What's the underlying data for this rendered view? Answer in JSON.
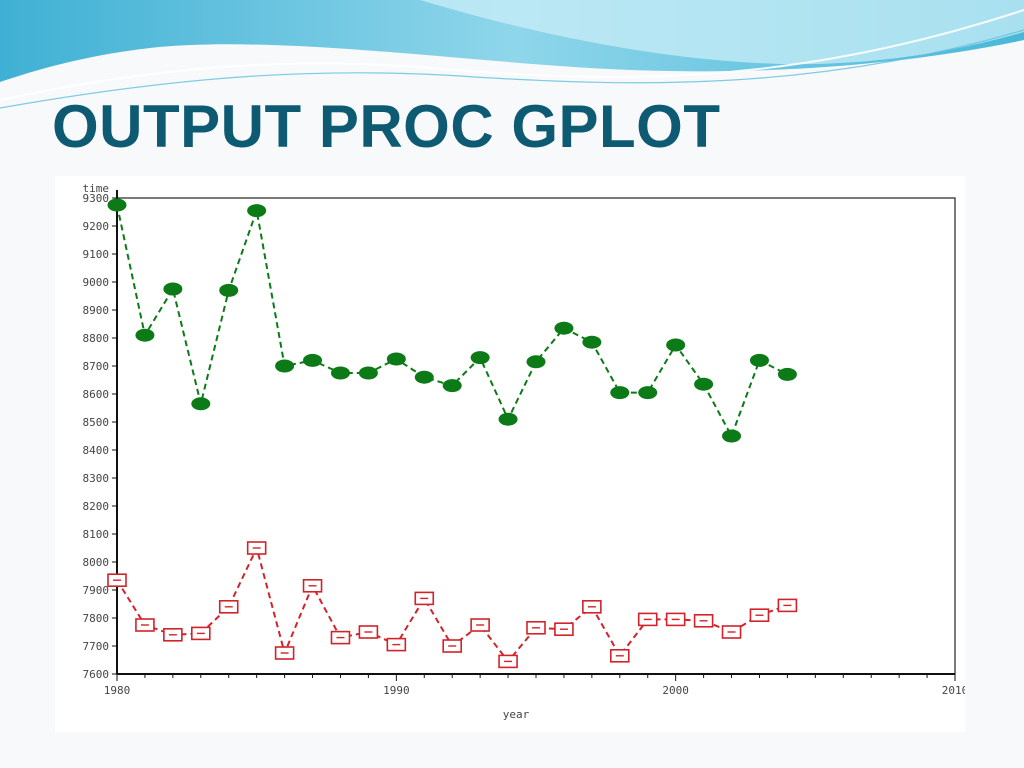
{
  "slide": {
    "title": "OUTPUT PROC GPLOT"
  },
  "colors": {
    "title": "#0e5a73",
    "series_upper": "#0b7a17",
    "series_lower": "#d2232a",
    "background": "#f7f9fb",
    "wave_top": "#48b8d8"
  },
  "chart_data": {
    "type": "line",
    "title": "",
    "xlabel": "year",
    "ylabel": "time",
    "xlim": [
      1980,
      2010
    ],
    "ylim": [
      7600,
      9300
    ],
    "x_ticks": [
      1980,
      1990,
      2000,
      2010
    ],
    "x_tick_labels": [
      "1980",
      "1990",
      "2000",
      "2010"
    ],
    "y_ticks": [
      7600,
      7700,
      7800,
      7900,
      8000,
      8100,
      8200,
      8300,
      8400,
      8500,
      8600,
      8700,
      8800,
      8900,
      9000,
      9100,
      9200,
      9300
    ],
    "y_tick_labels": [
      "7600",
      "7700",
      "7800",
      "7900",
      "8000",
      "8100",
      "8200",
      "8300",
      "8400",
      "8500",
      "8600",
      "8700",
      "8800",
      "8900",
      "9000",
      "9100",
      "9200",
      "9300"
    ],
    "grid": false,
    "line_style": "dashed",
    "series": [
      {
        "marker": "filled-dot",
        "color": "#0b7a17",
        "x": [
          1980,
          1981,
          1982,
          1983,
          1984,
          1985,
          1986,
          1987,
          1988,
          1989,
          1990,
          1991,
          1992,
          1993,
          1994,
          1995,
          1996,
          1997,
          1998,
          1999,
          2000,
          2001,
          2002,
          2003,
          2004
        ],
        "values": [
          9275,
          8810,
          8975,
          8565,
          8970,
          9255,
          8700,
          8720,
          8675,
          8675,
          8725,
          8660,
          8630,
          8730,
          8510,
          8715,
          8835,
          8785,
          8605,
          8605,
          8775,
          8635,
          8450,
          8720,
          8670
        ]
      },
      {
        "marker": "open-square",
        "color": "#d2232a",
        "x": [
          1980,
          1981,
          1982,
          1983,
          1984,
          1985,
          1986,
          1987,
          1988,
          1989,
          1990,
          1991,
          1992,
          1993,
          1994,
          1995,
          1996,
          1997,
          1998,
          1999,
          2000,
          2001,
          2002,
          2003,
          2004
        ],
        "values": [
          7935,
          7775,
          7740,
          7745,
          7840,
          8050,
          7675,
          7915,
          7730,
          7750,
          7705,
          7870,
          7700,
          7775,
          7645,
          7765,
          7760,
          7840,
          7665,
          7795,
          7795,
          7790,
          7750,
          7810,
          7845
        ]
      }
    ]
  }
}
